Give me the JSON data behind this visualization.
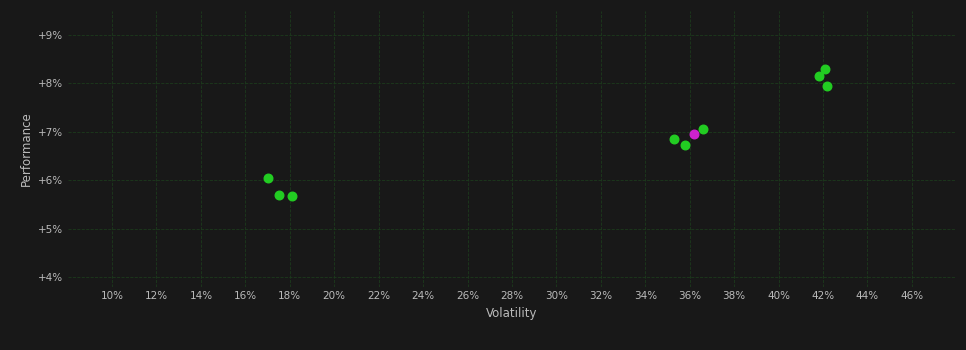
{
  "xlabel": "Volatility",
  "ylabel": "Performance",
  "background_color": "#181818",
  "text_color": "#bbbbbb",
  "dot_color_green": "#22cc22",
  "dot_color_magenta": "#cc22cc",
  "xlim": [
    0.08,
    0.48
  ],
  "ylim": [
    0.038,
    0.095
  ],
  "xticks": [
    0.1,
    0.12,
    0.14,
    0.16,
    0.18,
    0.2,
    0.22,
    0.24,
    0.26,
    0.28,
    0.3,
    0.32,
    0.34,
    0.36,
    0.38,
    0.4,
    0.42,
    0.44,
    0.46
  ],
  "yticks": [
    0.04,
    0.05,
    0.06,
    0.07,
    0.08,
    0.09
  ],
  "points_green": [
    [
      0.17,
      0.0605
    ],
    [
      0.175,
      0.057
    ],
    [
      0.181,
      0.0568
    ],
    [
      0.353,
      0.0685
    ],
    [
      0.358,
      0.0672
    ],
    [
      0.366,
      0.0705
    ],
    [
      0.418,
      0.0815
    ],
    [
      0.421,
      0.083
    ],
    [
      0.422,
      0.0795
    ]
  ],
  "points_magenta": [
    [
      0.362,
      0.0695
    ]
  ],
  "dot_size": 38
}
